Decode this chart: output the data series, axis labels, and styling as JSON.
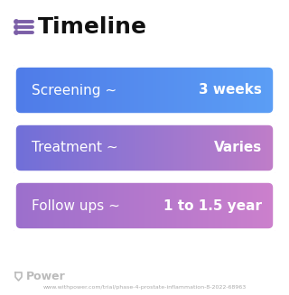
{
  "title": "Timeline",
  "title_fontsize": 18,
  "title_color": "#111111",
  "title_bold": true,
  "icon_color": "#7B5EA7",
  "background_color": "#ffffff",
  "rows": [
    {
      "label": "Screening ~",
      "value": "3 weeks",
      "color_left": "#4F7BE8",
      "color_right": "#5B9EF5"
    },
    {
      "label": "Treatment ~",
      "value": "Varies",
      "color_left": "#6F6FD8",
      "color_right": "#C07DC8"
    },
    {
      "label": "Follow ups ~",
      "value": "1 to 1.5 year",
      "color_left": "#9B6FCC",
      "color_right": "#CC80CC"
    }
  ],
  "text_fontsize": 11,
  "text_color": "#ffffff",
  "watermark_text": "Power",
  "watermark_color": "#bbbbbb",
  "url_text": "www.withpower.com/trial/phase-4-prostate-inflammation-8-2022-68963",
  "url_color": "#aaaaaa",
  "url_fontsize": 4.5
}
